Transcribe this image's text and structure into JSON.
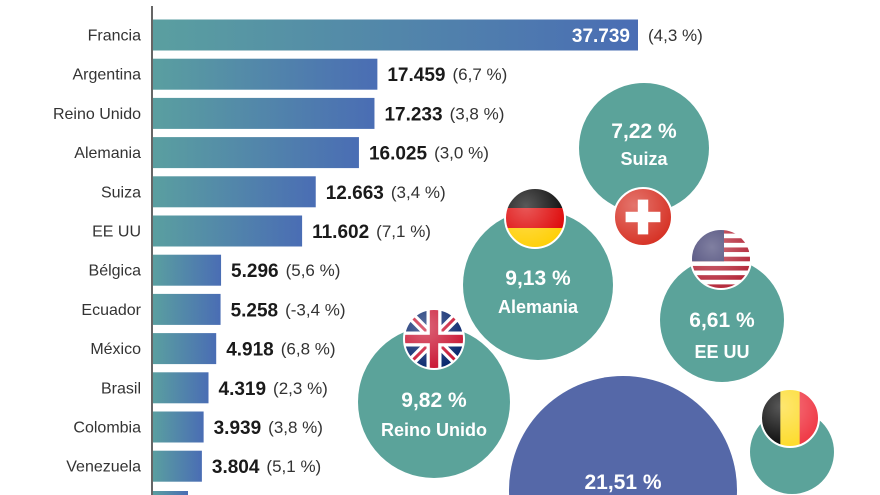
{
  "chart_data": [
    {
      "type": "bar",
      "orientation": "horizontal",
      "categories": [
        "Francia",
        "Argentina",
        "Reino Unido",
        "Alemania",
        "Suiza",
        "EE UU",
        "Bélgica",
        "Ecuador",
        "México",
        "Brasil",
        "Colombia",
        "Venezuela"
      ],
      "values": [
        37739,
        17459,
        17233,
        16025,
        12663,
        11602,
        5296,
        5258,
        4918,
        4319,
        3939,
        3804
      ],
      "value_labels": [
        "37.739",
        "17.459",
        "17.233",
        "16.025",
        "12.663",
        "11.602",
        "5.296",
        "5.258",
        "4.918",
        "4.319",
        "3.939",
        "3.804"
      ],
      "change_labels": [
        "(4,3 %)",
        "(6,7 %)",
        "(3,8 %)",
        "(3,0 %)",
        "(3,4 %)",
        "(7,1 %)",
        "(5,6 %)",
        "(-3,4 %)",
        "(6,8 %)",
        "(2,3 %)",
        "(3,8 %)",
        "(5,1 %)"
      ],
      "gradient_colors": [
        "#5a9fa0",
        "#4a6db4"
      ],
      "grid": false
    },
    {
      "type": "bubble",
      "bubbles": [
        {
          "label": "Suiza",
          "value_label": "7,22 %",
          "value": 7.22,
          "flag": "switzerland-flag",
          "color": "#5ba39a"
        },
        {
          "label": "Alemania",
          "value_label": "9,13 %",
          "value": 9.13,
          "flag": "germany-flag",
          "color": "#5ba39a"
        },
        {
          "label": "EE UU",
          "value_label": "6,61 %",
          "value": 6.61,
          "flag": "usa-flag",
          "color": "#5ba39a"
        },
        {
          "label": "Reino Unido",
          "value_label": "9,82 %",
          "value": 9.82,
          "flag": "uk-flag",
          "color": "#5ba39a"
        },
        {
          "label": "",
          "value_label": "21,51 %",
          "value": 21.51,
          "flag": "",
          "color": "#5568a8"
        },
        {
          "label": "",
          "value_label": "",
          "value": null,
          "flag": "belgium-flag",
          "color": "#5ba39a"
        }
      ]
    }
  ]
}
